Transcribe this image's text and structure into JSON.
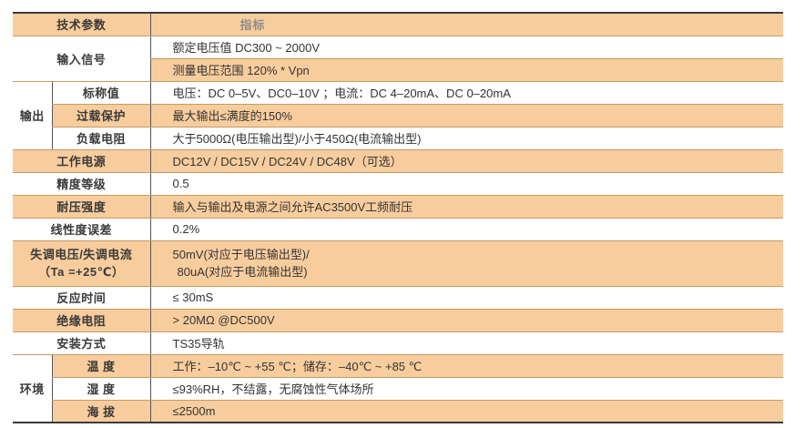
{
  "spec_table": {
    "header": {
      "param": "技术参数",
      "indicator": "指标"
    },
    "groups": {
      "input_signal": "输入信号",
      "output": "输出",
      "environment": "环境"
    },
    "rows": [
      {
        "label": "",
        "value": "额定电压值 DC300 ~ 2000V"
      },
      {
        "label": "",
        "value": "测量电压范围 120% * Vpn"
      },
      {
        "label": "标称值",
        "value": "电压：DC 0–5V、DC0–10V ；电流：DC 4–20mA、DC 0–20mA"
      },
      {
        "label": "过载保护",
        "value": "最大输出≤满度的150%"
      },
      {
        "label": "负载电阻",
        "value": "大于5000Ω(电压输出型)/小于450Ω(电流输出型)"
      },
      {
        "label": "工作电源",
        "value": "DC12V / DC15V / DC24V / DC48V（可选）"
      },
      {
        "label": "精度等级",
        "value": "0.5"
      },
      {
        "label": "耐压强度",
        "value": "输入与输出及电源之间允许AC3500V工频耐压"
      },
      {
        "label": "线性度误差",
        "value": "0.2%"
      },
      {
        "label_line1": "失调电压/失调电流",
        "label_line2": "（Ta =+25℃）",
        "value_line1": "50mV(对应于电压输出型)/",
        "value_line2": "80uA(对应于电流输出型)"
      },
      {
        "label": "反应时间",
        "value": "≤ 30mS"
      },
      {
        "label": "绝缘电阻",
        "value": "> 20MΩ @DC500V"
      },
      {
        "label": "安装方式",
        "value": "TS35导轨"
      },
      {
        "label": "温 度",
        "value": "工作：–10℃ ~ +55 ℃；储存：–40℃ ~ +85 ℃"
      },
      {
        "label": "湿 度",
        "value": "≤93%RH，不结露，无腐蚀性气体场所"
      },
      {
        "label": "海 拔",
        "value": "≤2500m"
      }
    ],
    "colors": {
      "band": "#f8cd9d",
      "row_line": "#c59a63",
      "frame": "#3b3b3b",
      "column_divider": "#565656",
      "indicator_text": "#8e8d8d",
      "text": "#333333"
    }
  }
}
